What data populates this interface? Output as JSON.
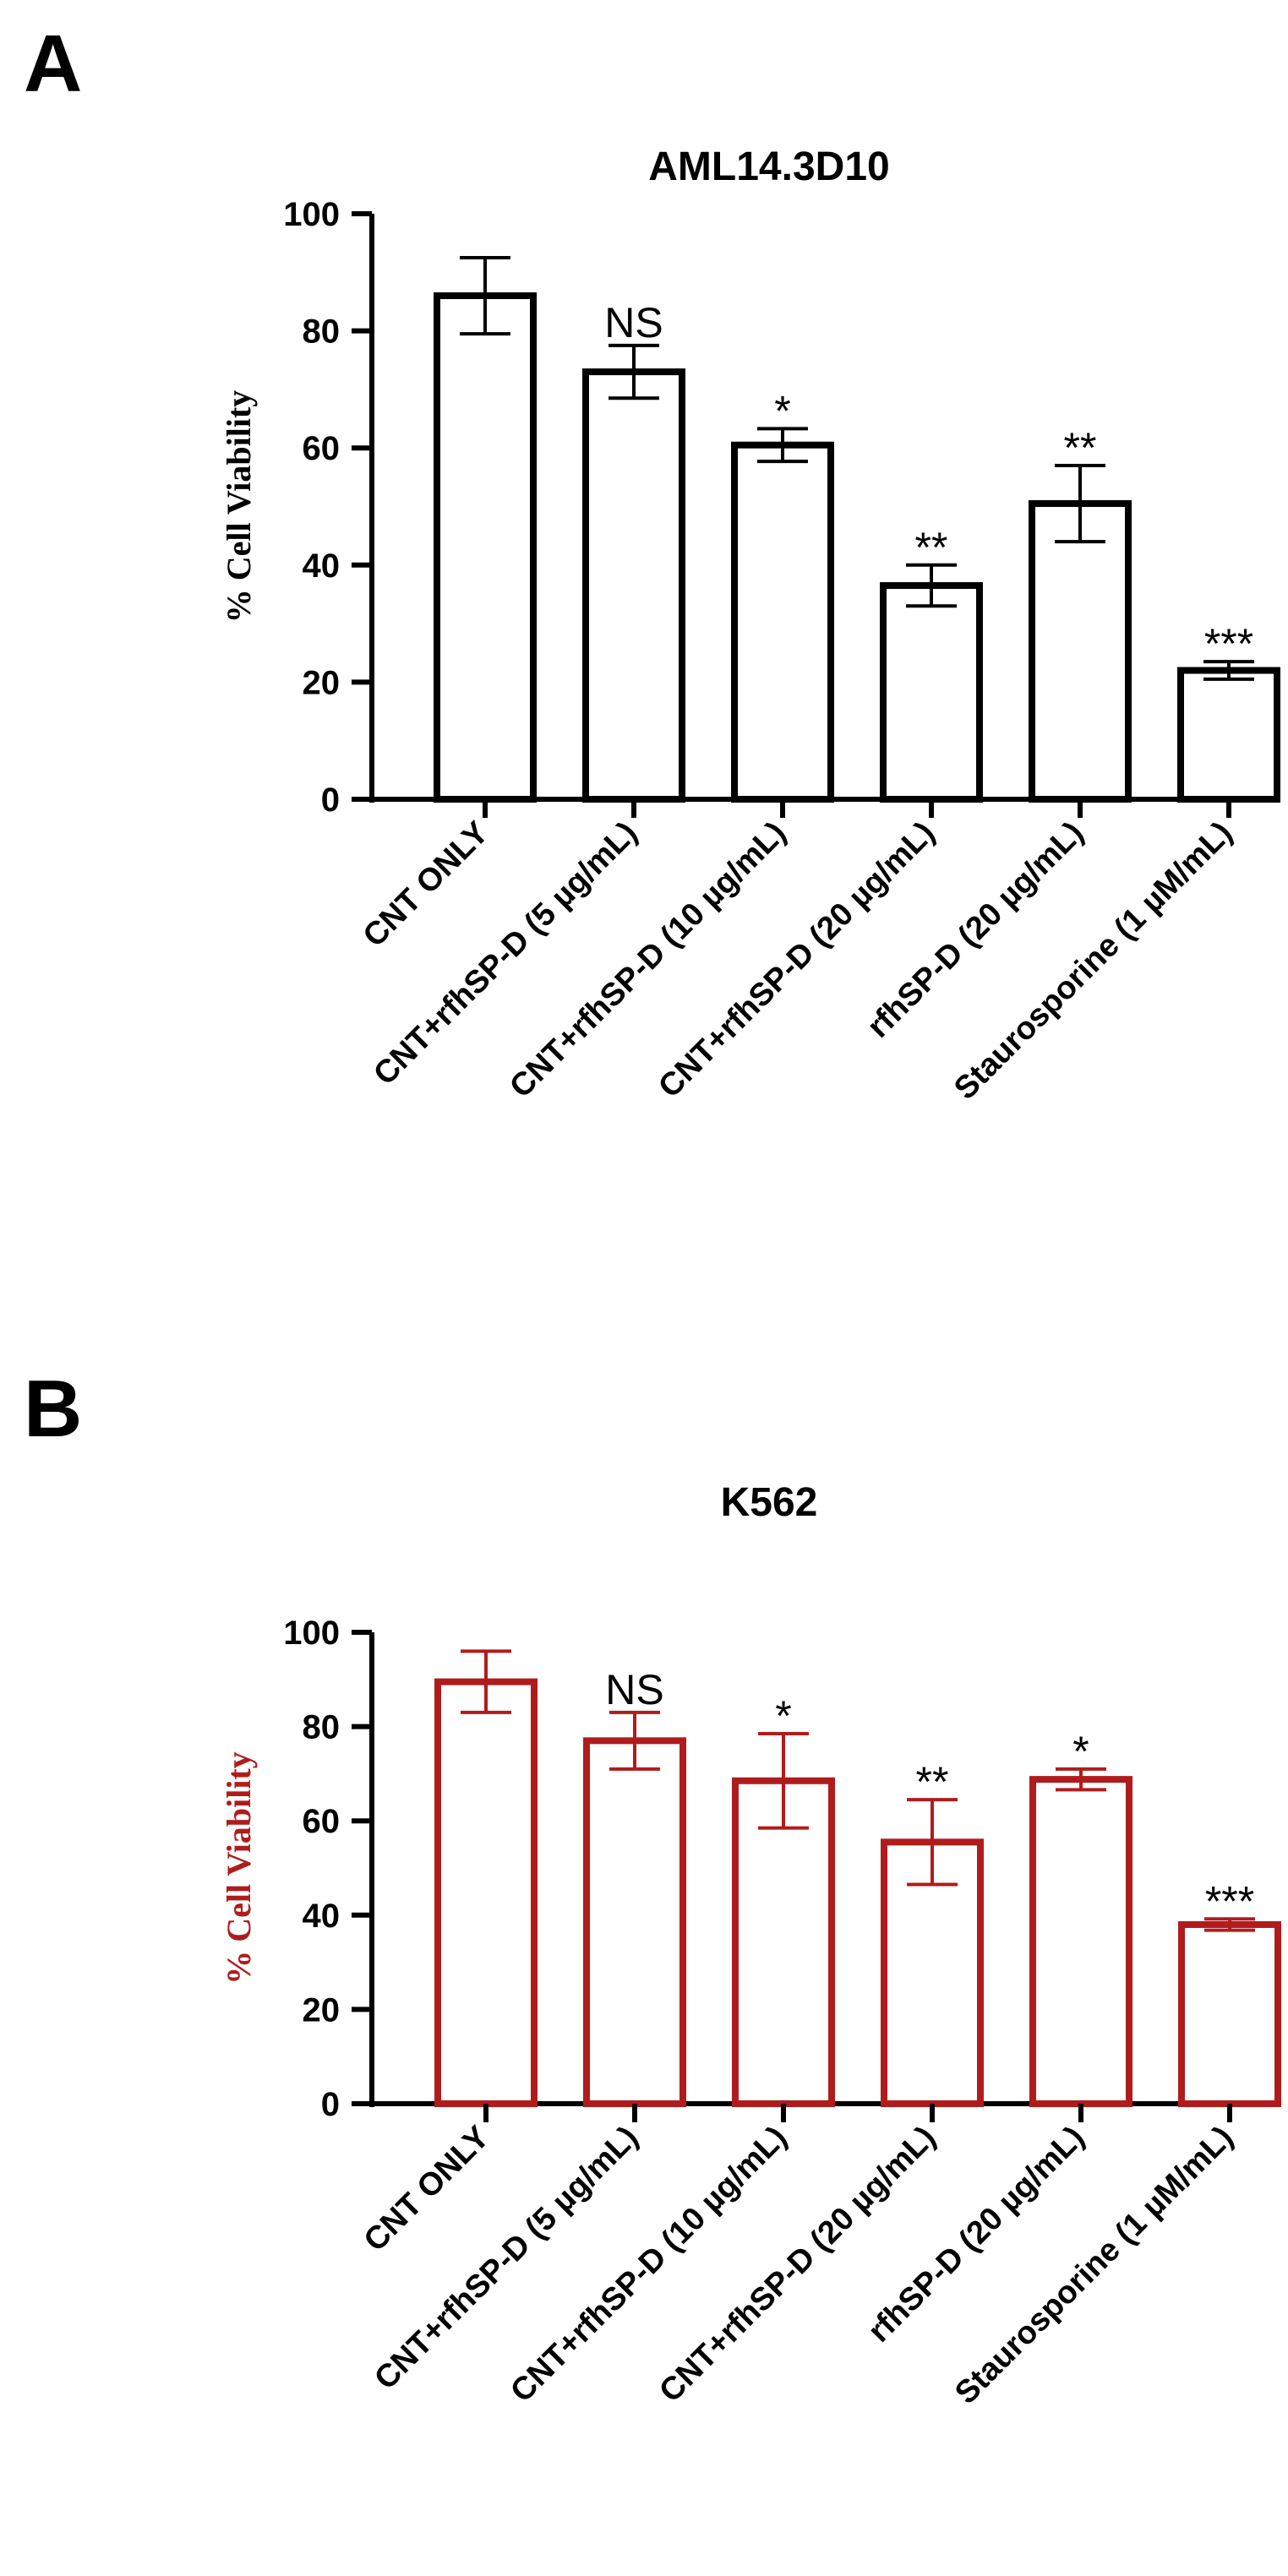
{
  "panels": [
    {
      "letter": "A",
      "color": "#000000",
      "chart_data": {
        "type": "bar",
        "title": "AML14.3D10",
        "xlabel": "",
        "ylabel": "% Cell Viability",
        "ylim": [
          0,
          100
        ],
        "yticks": [
          0,
          20,
          40,
          60,
          80,
          100
        ],
        "categories": [
          "CNT ONLY",
          "CNT+rfhSP-D (5 µg/mL)",
          "CNT+rfhSP-D (10 µg/mL)",
          "CNT+rfhSP-D (20 µg/mL)",
          "rfhSP-D (20 µg/mL)",
          "Staurosporine (1 µM/mL)"
        ],
        "values": [
          86,
          73,
          60.5,
          36.5,
          50.5,
          22
        ],
        "errors": [
          6.5,
          4.5,
          2.8,
          3.5,
          6.5,
          1.5
        ],
        "significance": [
          "",
          "NS",
          "*",
          "**",
          "**",
          "***"
        ]
      }
    },
    {
      "letter": "B",
      "color": "#b01c1c",
      "chart_data": {
        "type": "bar",
        "title": "K562",
        "xlabel": "",
        "ylabel": "% Cell Viability",
        "ylim": [
          0,
          100
        ],
        "yticks": [
          0,
          20,
          40,
          60,
          80,
          100
        ],
        "categories": [
          "CNT ONLY",
          "CNT+rfhSP-D (5 µg/mL)",
          "CNT+rfhSP-D (10 µg/mL)",
          "CNT+rfhSP-D (20 µg/mL)",
          "rfhSP-D (20 µg/mL)",
          "Staurosporine (1 µM/mL)"
        ],
        "values": [
          89.5,
          77,
          68.5,
          55.5,
          68.8,
          38
        ],
        "errors": [
          6.5,
          6,
          10,
          9,
          2.2,
          1.2
        ],
        "significance": [
          "",
          "NS",
          "*",
          "**",
          "*",
          "***"
        ]
      }
    }
  ]
}
